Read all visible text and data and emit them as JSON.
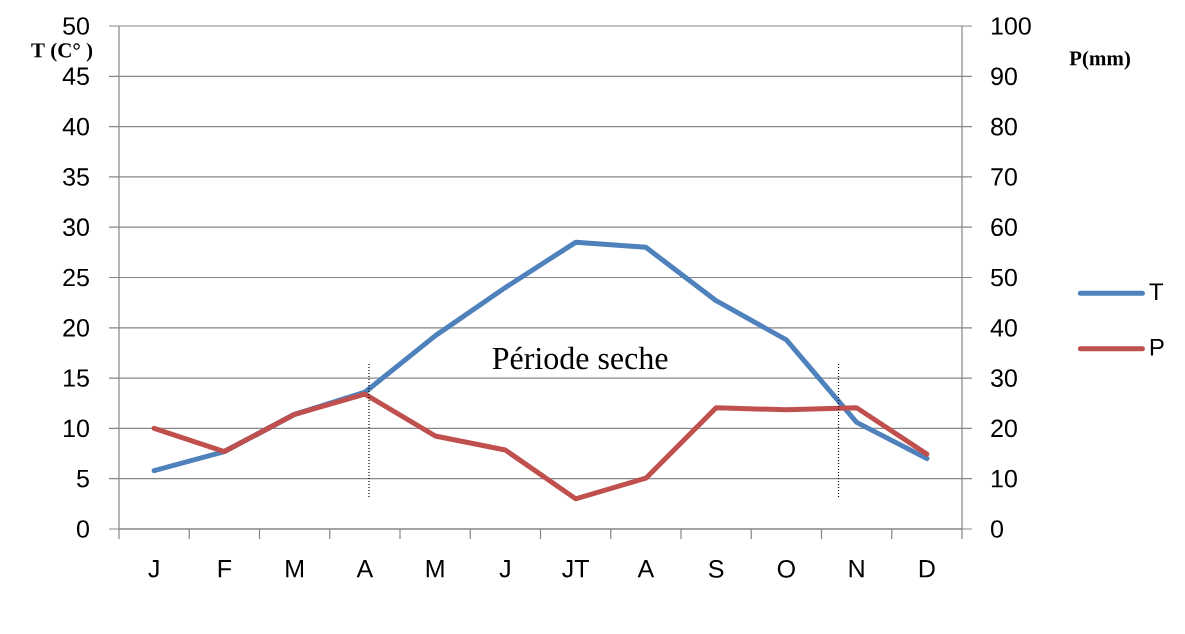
{
  "chart_data": {
    "type": "line",
    "categories": [
      "J",
      "F",
      "M",
      "A",
      "M",
      "J",
      "JT",
      "A",
      "S",
      "O",
      "N",
      "D"
    ],
    "series": [
      {
        "name": "T",
        "color": "#4f81bd",
        "values": [
          5.8,
          7.7,
          11.4,
          13.6,
          19.2,
          24.0,
          28.5,
          28.0,
          22.7,
          18.8,
          10.6,
          7.0
        ]
      },
      {
        "name": "P",
        "color": "#c0504d",
        "axis": "y2",
        "values": [
          20.0,
          15.4,
          22.8,
          26.8,
          18.5,
          15.7,
          6.0,
          10.1,
          24.1,
          23.7,
          24.1,
          14.9
        ]
      }
    ],
    "ylabel": "T (C° )",
    "y2label": "P(mm)",
    "ylim": [
      0,
      50
    ],
    "yticks": [
      0,
      5,
      10,
      15,
      20,
      25,
      30,
      35,
      40,
      45,
      50
    ],
    "y2lim": [
      0,
      100
    ],
    "y2ticks": [
      0,
      10,
      20,
      30,
      40,
      50,
      60,
      70,
      80,
      90,
      100
    ],
    "grid": "y",
    "legend": "right",
    "marker": "none",
    "line_style": "solid",
    "annotations": [
      "Période seche"
    ]
  }
}
